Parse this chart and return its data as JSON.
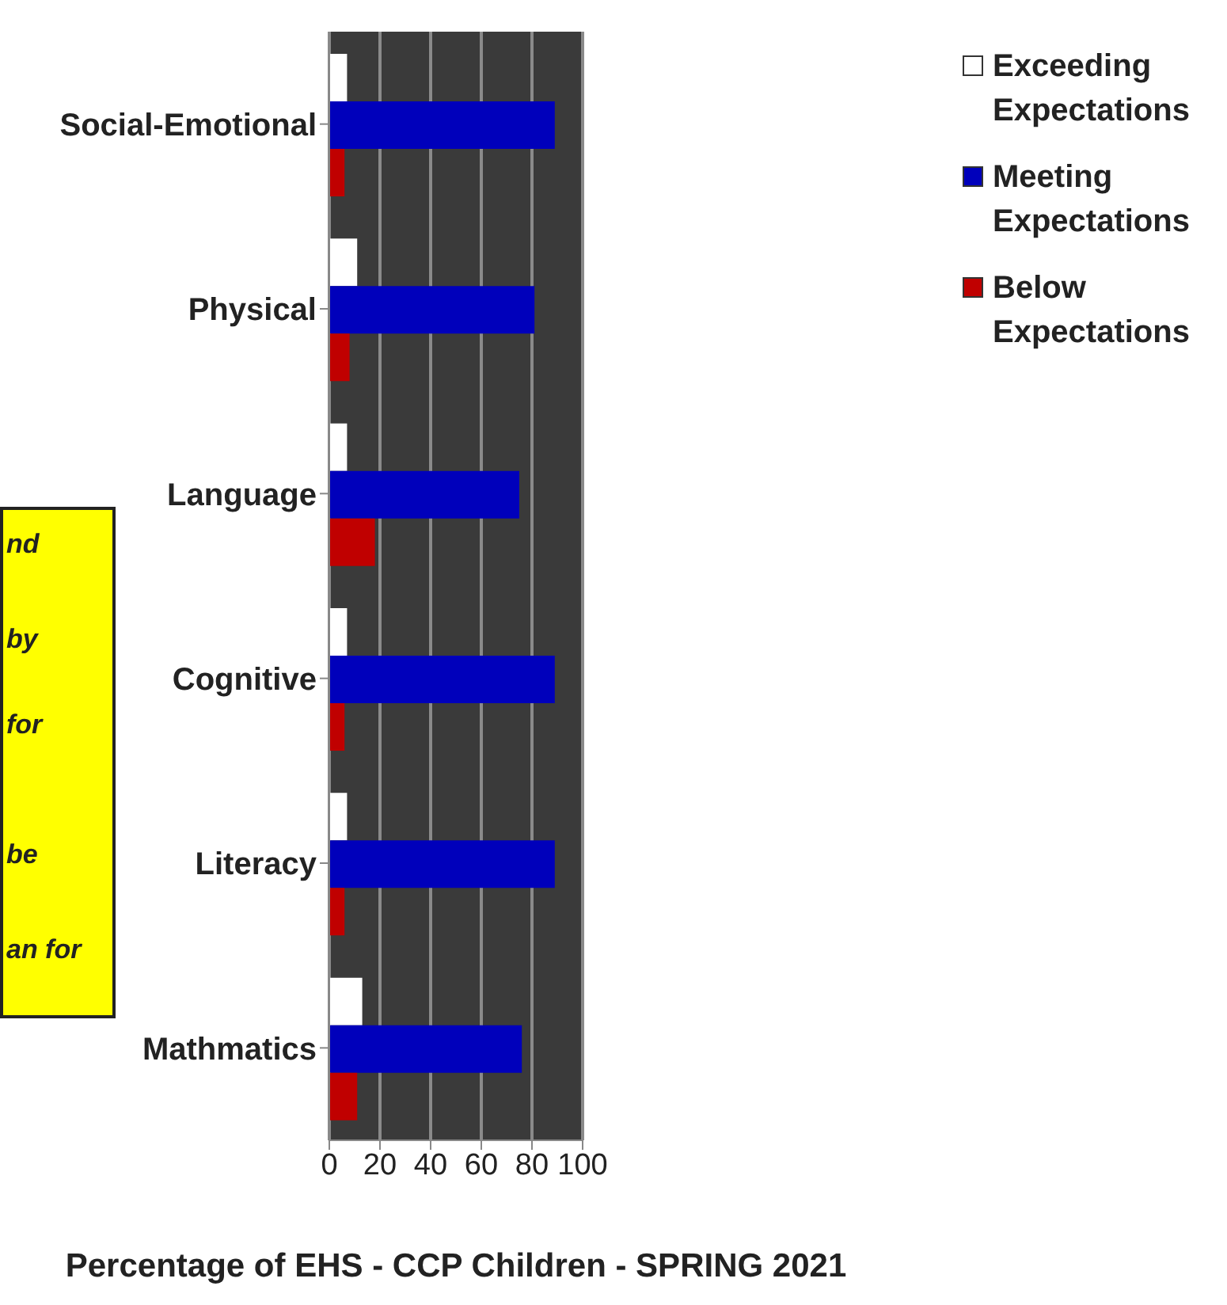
{
  "chart_data": {
    "type": "bar",
    "orientation": "horizontal",
    "xlabel": "Percentage of EHS - CCP Children - SPRING 2021",
    "categories": [
      "Social-Emotional",
      "Physical",
      "Language",
      "Cognitive",
      "Literacy",
      "Mathmatics"
    ],
    "series": [
      {
        "name": "Exceeding Expectations",
        "color": "#ffffff",
        "values": [
          7,
          11,
          7,
          7,
          7,
          13
        ]
      },
      {
        "name": "Meeting Expectations",
        "color": "#0000bb",
        "values": [
          89,
          81,
          75,
          89,
          89,
          76
        ]
      },
      {
        "name": "Below Expectations",
        "color": "#c00000",
        "values": [
          6,
          8,
          18,
          6,
          6,
          11
        ]
      }
    ],
    "xlim": [
      0,
      100
    ],
    "xticks": [
      0,
      20,
      40,
      60,
      80,
      100
    ],
    "grid": "x",
    "legend": "top right",
    "annotations": [
      "nd",
      "by",
      "for",
      "be",
      "an for"
    ]
  }
}
